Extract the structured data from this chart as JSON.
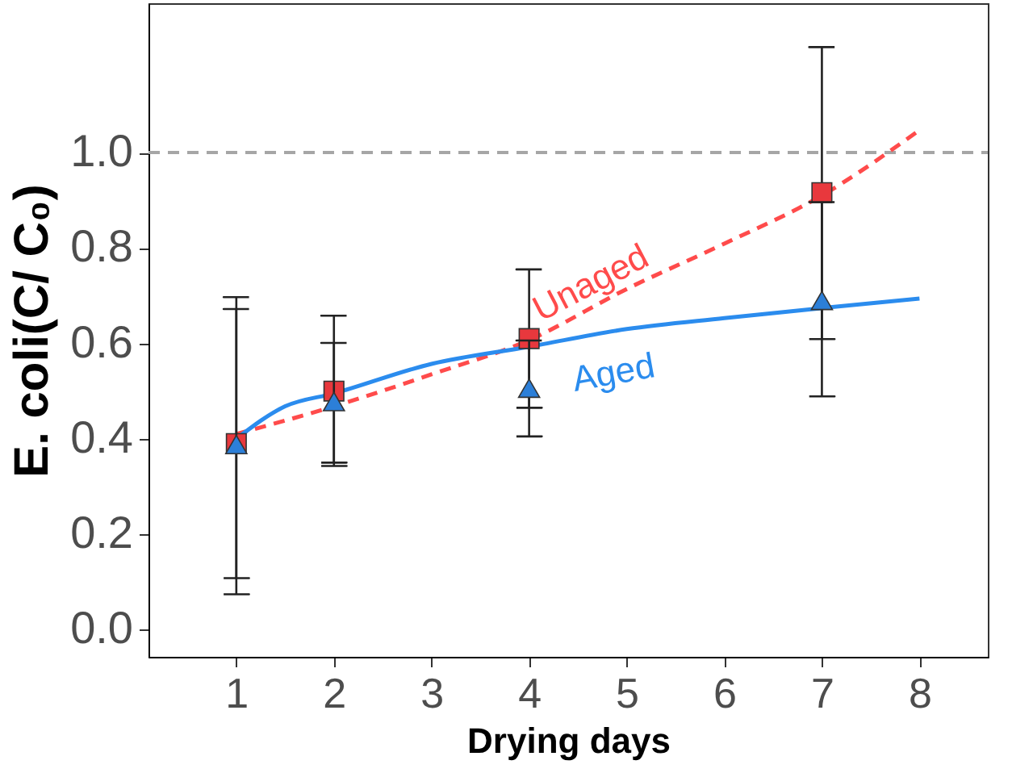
{
  "chart_data": {
    "type": "scatter",
    "xlabel": "Drying days",
    "ylabel": "E. coli(C/ C₀)",
    "xlim": [
      0.1,
      8.7
    ],
    "xticks": [
      1,
      2,
      3,
      4,
      5,
      6,
      7,
      8
    ],
    "ylim": [
      -0.057,
      1.313
    ],
    "yticks": [
      {
        "value": 0,
        "label": "0.0"
      },
      {
        "value": 0.2,
        "label": "0.2"
      },
      {
        "value": 0.4,
        "label": "0.4"
      },
      {
        "value": 0.6,
        "label": "0.6"
      },
      {
        "value": 0.8,
        "label": "0.8"
      },
      {
        "value": 1,
        "label": "1.0"
      }
    ],
    "grid": false,
    "ref_lines": [
      {
        "axis": "y",
        "value": 1.0,
        "color": "#a6a6a6",
        "line_style": "dashed"
      }
    ],
    "series": [
      {
        "marker": "square",
        "color": "#e8383d",
        "x": [
          1,
          2,
          4,
          7
        ],
        "values": [
          0.39,
          0.5,
          0.61,
          0.916
        ],
        "errors": [
          [
            0.074,
            0.697
          ],
          [
            0.343,
            0.658
          ],
          [
            0.465,
            0.755
          ],
          [
            0.609,
            1.221
          ]
        ]
      },
      {
        "marker": "triangle",
        "color": "#2c7fd8",
        "x": [
          1,
          2,
          4,
          7
        ],
        "values": [
          0.388,
          0.478,
          0.506,
          0.69
        ],
        "errors": [
          [
            0.108,
            0.672
          ],
          [
            0.35,
            0.601
          ],
          [
            0.405,
            0.606
          ],
          [
            0.489,
            0.896
          ]
        ]
      },
      {
        "type": "line",
        "marker": "none",
        "line_style": "dashed",
        "color": "#ff4b4b",
        "x": [
          1,
          2,
          3,
          4,
          5,
          6,
          7,
          8
        ],
        "values": [
          0.41,
          0.468,
          0.535,
          0.607,
          0.714,
          0.809,
          0.91,
          1.047
        ]
      },
      {
        "type": "line",
        "marker": "none",
        "line_style": "solid",
        "color": "#2b8cee",
        "x": [
          1,
          1.5,
          2,
          3,
          4,
          5,
          6,
          7,
          8
        ],
        "values": [
          0.4,
          0.468,
          0.495,
          0.557,
          0.593,
          0.63,
          0.653,
          0.674,
          0.694
        ]
      }
    ],
    "annotations": [
      "Unaged",
      "Aged"
    ]
  }
}
